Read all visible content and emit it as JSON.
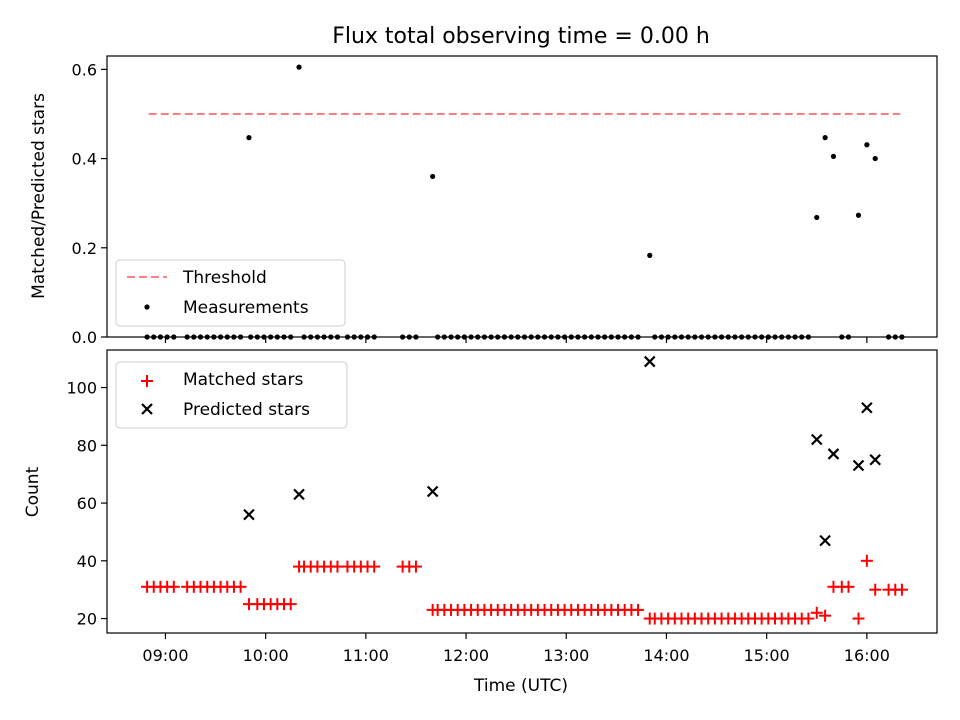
{
  "chart_data": [
    {
      "type": "scatter",
      "panel": "top",
      "title": "Flux total observing time = 0.00 h",
      "xlabel": "",
      "ylabel": "Matched/Predicted stars",
      "xlim": [
        "08:25",
        "16:42"
      ],
      "ylim": [
        0,
        0.63
      ],
      "y_ticks": [
        0.0,
        0.2,
        0.4,
        0.6
      ],
      "y_tick_labels": [
        "0.0",
        "0.2",
        "0.4",
        "0.6"
      ],
      "x_ticks": [
        "09:00",
        "10:00",
        "11:00",
        "12:00",
        "13:00",
        "14:00",
        "15:00",
        "16:00"
      ],
      "grid": false,
      "legend": {
        "position": "lower-left",
        "entries": [
          {
            "label": "Threshold",
            "style": "dashed-line",
            "color": "#ff7f7f"
          },
          {
            "label": "Measurements",
            "style": "dot",
            "color": "#000000"
          }
        ]
      },
      "series": [
        {
          "name": "Threshold",
          "kind": "line",
          "color": "#ff7f7f",
          "dash": true,
          "x": [
            "08:50",
            "16:20"
          ],
          "y": [
            0.5,
            0.5
          ]
        },
        {
          "name": "Measurements",
          "kind": "scatter",
          "color": "#000000",
          "x": [
            "08:49",
            "08:53",
            "08:57",
            "09:01",
            "09:05",
            "09:13",
            "09:17",
            "09:21",
            "09:25",
            "09:29",
            "09:33",
            "09:37",
            "09:41",
            "09:45",
            "09:51",
            "09:55",
            "09:59",
            "10:03",
            "10:07",
            "10:11",
            "10:15",
            "10:23",
            "10:27",
            "10:31",
            "10:35",
            "10:39",
            "10:43",
            "10:49",
            "10:53",
            "10:57",
            "11:01",
            "11:05",
            "11:22",
            "11:26",
            "11:30",
            "11:43",
            "11:47",
            "11:51",
            "11:55",
            "11:59",
            "12:03",
            "12:07",
            "12:11",
            "12:15",
            "12:19",
            "12:23",
            "12:27",
            "12:31",
            "12:35",
            "12:39",
            "12:43",
            "12:47",
            "12:51",
            "12:55",
            "12:59",
            "13:03",
            "13:07",
            "13:11",
            "13:15",
            "13:19",
            "13:23",
            "13:27",
            "13:31",
            "13:35",
            "13:39",
            "13:43",
            "13:53",
            "13:57",
            "14:01",
            "14:05",
            "14:09",
            "14:13",
            "14:17",
            "14:21",
            "14:25",
            "14:29",
            "14:33",
            "14:37",
            "14:41",
            "14:45",
            "14:49",
            "14:53",
            "14:57",
            "15:01",
            "15:05",
            "15:09",
            "15:13",
            "15:17",
            "15:21",
            "15:25",
            "15:45",
            "15:49",
            "16:13",
            "16:17",
            "16:21",
            "09:50",
            "10:20",
            "11:40",
            "13:50",
            "15:30",
            "15:35",
            "15:40",
            "15:55",
            "16:00",
            "16:05"
          ],
          "y": [
            0,
            0,
            0,
            0,
            0,
            0,
            0,
            0,
            0,
            0,
            0,
            0,
            0,
            0,
            0,
            0,
            0,
            0,
            0,
            0,
            0,
            0,
            0,
            0,
            0,
            0,
            0,
            0,
            0,
            0,
            0,
            0,
            0,
            0,
            0,
            0,
            0,
            0,
            0,
            0,
            0,
            0,
            0,
            0,
            0,
            0,
            0,
            0,
            0,
            0,
            0,
            0,
            0,
            0,
            0,
            0,
            0,
            0,
            0,
            0,
            0,
            0,
            0,
            0,
            0,
            0,
            0,
            0,
            0,
            0,
            0,
            0,
            0,
            0,
            0,
            0,
            0,
            0,
            0,
            0,
            0,
            0,
            0,
            0,
            0,
            0,
            0,
            0,
            0,
            0,
            0,
            0,
            0,
            0,
            0,
            0.447,
            0.605,
            0.36,
            0.183,
            0.268,
            0.447,
            0.405,
            0.273,
            0.431,
            0.4
          ]
        }
      ]
    },
    {
      "type": "scatter",
      "panel": "bottom",
      "xlabel": "Time (UTC)",
      "ylabel": "Count",
      "xlim": [
        "08:25",
        "16:42"
      ],
      "ylim": [
        15,
        113
      ],
      "y_ticks": [
        20,
        40,
        60,
        80,
        100
      ],
      "y_tick_labels": [
        "20",
        "40",
        "60",
        "80",
        "100"
      ],
      "x_ticks": [
        "09:00",
        "10:00",
        "11:00",
        "12:00",
        "13:00",
        "14:00",
        "15:00",
        "16:00"
      ],
      "x_tick_labels": [
        "09:00",
        "10:00",
        "11:00",
        "12:00",
        "13:00",
        "14:00",
        "15:00",
        "16:00"
      ],
      "grid": false,
      "legend": {
        "position": "upper-left",
        "entries": [
          {
            "label": "Matched stars",
            "style": "plus",
            "color": "#ff0000"
          },
          {
            "label": "Predicted stars",
            "style": "x",
            "color": "#000000"
          }
        ]
      },
      "series": [
        {
          "name": "Matched stars",
          "kind": "scatter",
          "marker": "plus",
          "color": "#ff0000",
          "x": [
            "08:49",
            "08:53",
            "08:57",
            "09:01",
            "09:05",
            "09:13",
            "09:17",
            "09:21",
            "09:25",
            "09:29",
            "09:33",
            "09:37",
            "09:41",
            "09:45",
            "09:50",
            "09:55",
            "09:59",
            "10:03",
            "10:07",
            "10:11",
            "10:15",
            "10:20",
            "10:23",
            "10:27",
            "10:31",
            "10:35",
            "10:39",
            "10:43",
            "10:49",
            "10:53",
            "10:57",
            "11:01",
            "11:05",
            "11:22",
            "11:26",
            "11:30",
            "11:40",
            "11:43",
            "11:47",
            "11:51",
            "11:55",
            "11:59",
            "12:03",
            "12:07",
            "12:11",
            "12:15",
            "12:19",
            "12:23",
            "12:27",
            "12:31",
            "12:35",
            "12:39",
            "12:43",
            "12:47",
            "12:51",
            "12:55",
            "12:59",
            "13:03",
            "13:07",
            "13:11",
            "13:15",
            "13:19",
            "13:23",
            "13:27",
            "13:31",
            "13:35",
            "13:39",
            "13:43",
            "13:50",
            "13:53",
            "13:57",
            "14:01",
            "14:05",
            "14:09",
            "14:13",
            "14:17",
            "14:21",
            "14:25",
            "14:29",
            "14:33",
            "14:37",
            "14:41",
            "14:45",
            "14:49",
            "14:53",
            "14:57",
            "15:01",
            "15:05",
            "15:09",
            "15:13",
            "15:17",
            "15:21",
            "15:25",
            "15:30",
            "15:35",
            "15:40",
            "15:45",
            "15:49",
            "15:55",
            "16:00",
            "16:05",
            "16:13",
            "16:17",
            "16:21"
          ],
          "y": [
            31,
            31,
            31,
            31,
            31,
            31,
            31,
            31,
            31,
            31,
            31,
            31,
            31,
            31,
            25,
            25,
            25,
            25,
            25,
            25,
            25,
            38,
            38,
            38,
            38,
            38,
            38,
            38,
            38,
            38,
            38,
            38,
            38,
            38,
            38,
            38,
            23,
            23,
            23,
            23,
            23,
            23,
            23,
            23,
            23,
            23,
            23,
            23,
            23,
            23,
            23,
            23,
            23,
            23,
            23,
            23,
            23,
            23,
            23,
            23,
            23,
            23,
            23,
            23,
            23,
            23,
            23,
            23,
            20,
            20,
            20,
            20,
            20,
            20,
            20,
            20,
            20,
            20,
            20,
            20,
            20,
            20,
            20,
            20,
            20,
            20,
            20,
            20,
            20,
            20,
            20,
            20,
            20,
            22,
            21,
            31,
            31,
            31,
            20,
            40,
            30,
            30,
            30,
            30
          ]
        },
        {
          "name": "Predicted stars",
          "kind": "scatter",
          "marker": "x",
          "color": "#000000",
          "x": [
            "09:50",
            "10:20",
            "11:40",
            "13:50",
            "15:30",
            "15:35",
            "15:40",
            "15:55",
            "16:00",
            "16:05"
          ],
          "y": [
            56,
            63,
            64,
            109,
            82,
            47,
            77,
            73,
            93,
            75
          ]
        }
      ]
    }
  ]
}
